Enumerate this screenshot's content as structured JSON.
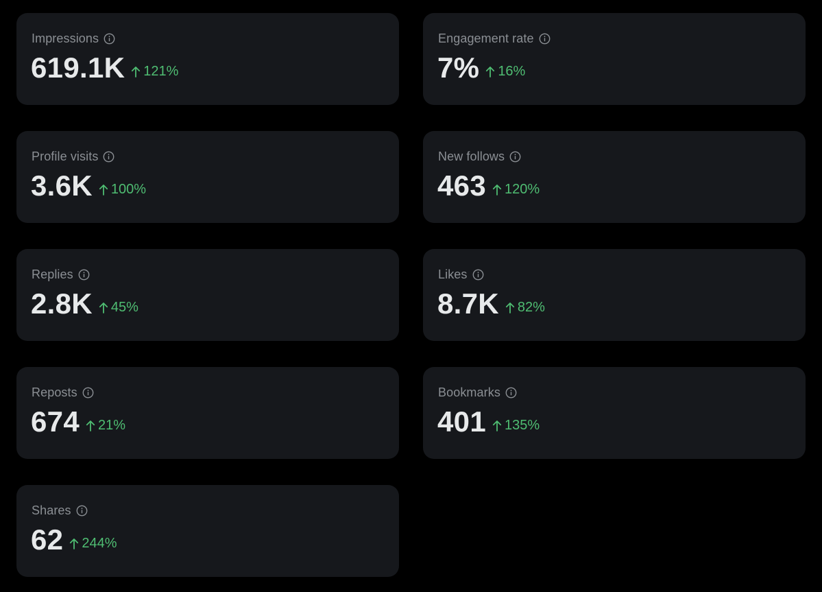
{
  "colors": {
    "background": "#000000",
    "card": "#16181c",
    "label": "#8b8f94",
    "value": "#e7e9ea",
    "positive": "#4fbd72"
  },
  "icons": {
    "info": "info-circle-icon",
    "trend": "arrow-up-icon"
  },
  "metrics": [
    {
      "label": "Impressions",
      "value": "619.1K",
      "change": "121%"
    },
    {
      "label": "Engagement rate",
      "value": "7%",
      "change": "16%"
    },
    {
      "label": "Profile visits",
      "value": "3.6K",
      "change": "100%"
    },
    {
      "label": "New follows",
      "value": "463",
      "change": "120%"
    },
    {
      "label": "Replies",
      "value": "2.8K",
      "change": "45%"
    },
    {
      "label": "Likes",
      "value": "8.7K",
      "change": "82%"
    },
    {
      "label": "Reposts",
      "value": "674",
      "change": "21%"
    },
    {
      "label": "Bookmarks",
      "value": "401",
      "change": "135%"
    },
    {
      "label": "Shares",
      "value": "62",
      "change": "244%"
    }
  ]
}
